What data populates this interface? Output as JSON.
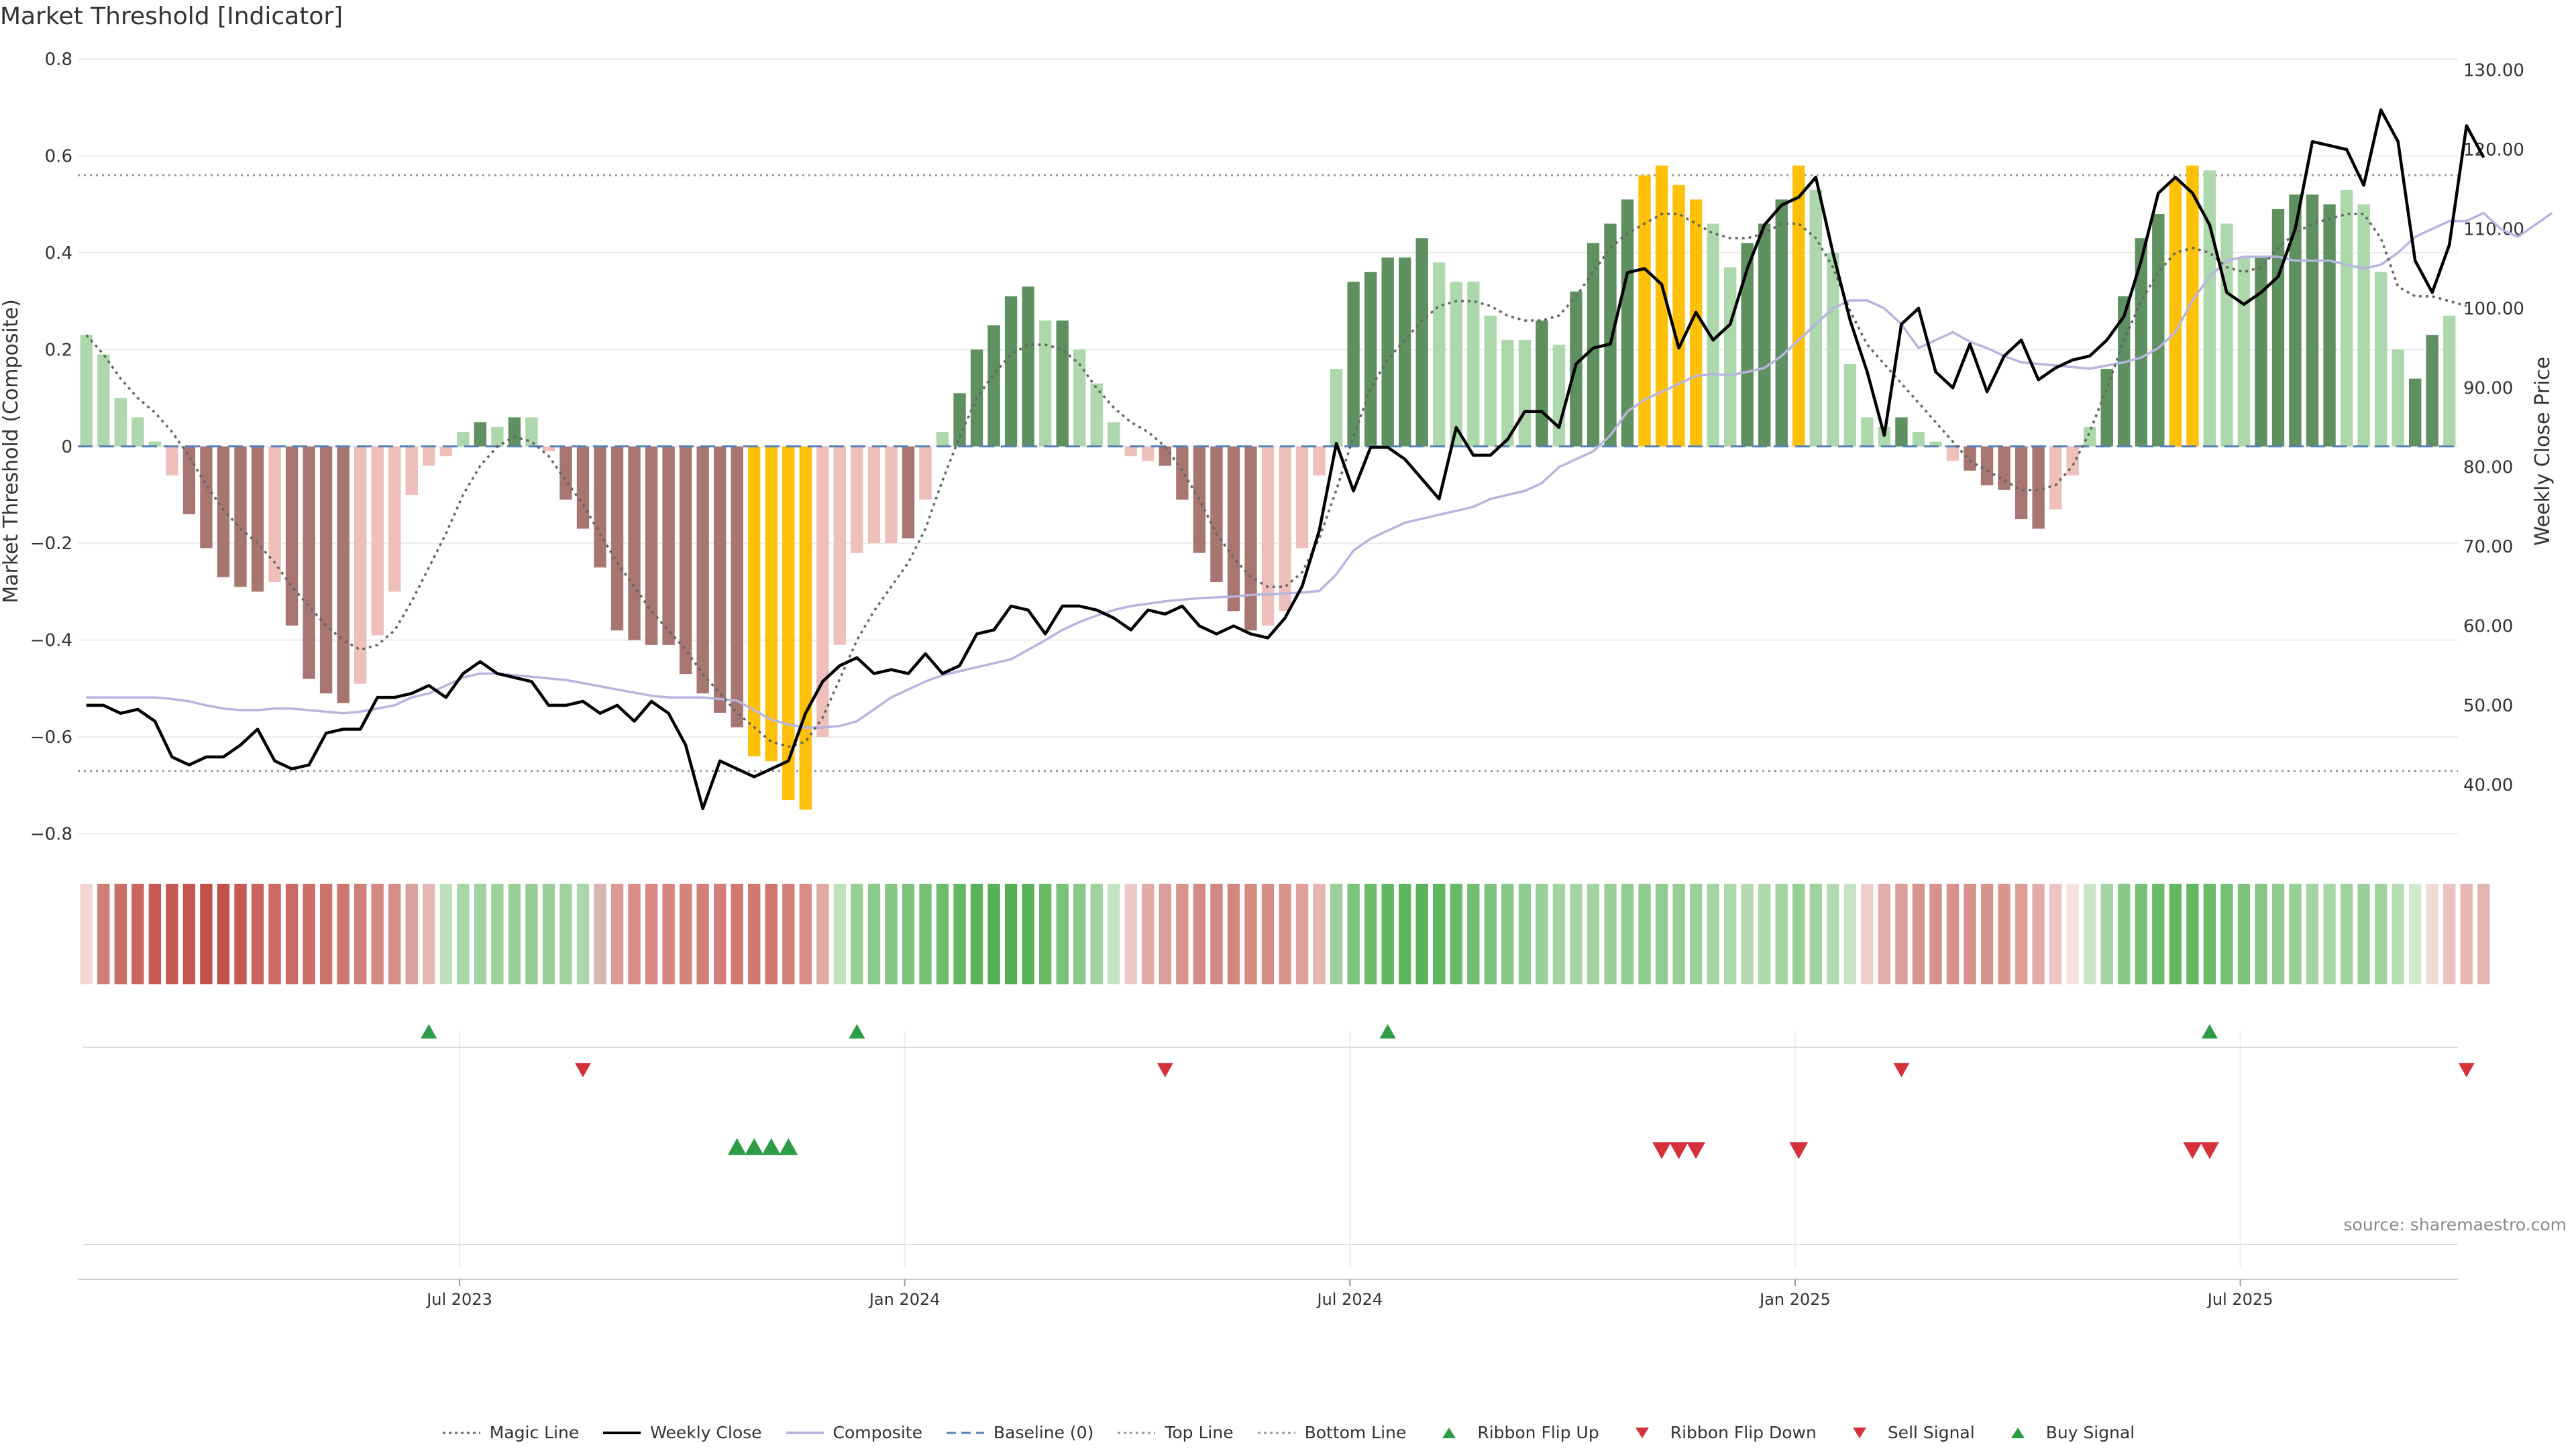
{
  "title": "Market Threshold [Indicator]",
  "source": "source: sharemaestro.com",
  "colors": {
    "up_strong": "#5e9060",
    "up_weak": "#acd8ac",
    "down_strong": "#a87672",
    "down_weak": "#eebfbb",
    "extreme": "#ffc107",
    "price": "#000000",
    "composite": "#b8b4e0",
    "magic": "#666666",
    "baseline": "#5580b8",
    "threshold": "#999999",
    "buy": "#2e9c46",
    "sell": "#d6303a"
  },
  "legend": [
    {
      "key": "magic",
      "label": "Magic Line",
      "style": "dotted"
    },
    {
      "key": "price",
      "label": "Weekly Close",
      "style": "solid"
    },
    {
      "key": "composite",
      "label": "Composite",
      "style": "solid"
    },
    {
      "key": "baseline",
      "label": "Baseline (0)",
      "style": "dashed"
    },
    {
      "key": "threshold",
      "label": "Top Line",
      "style": "dotted"
    },
    {
      "key": "threshold",
      "label": "Bottom Line",
      "style": "dotted"
    },
    {
      "key": "buy",
      "label": "Ribbon Flip Up",
      "style": "tri-up"
    },
    {
      "key": "sell",
      "label": "Ribbon Flip Down",
      "style": "tri-down"
    },
    {
      "key": "sell",
      "label": "Sell Signal",
      "style": "tri-down-big"
    },
    {
      "key": "buy",
      "label": "Buy Signal",
      "style": "tri-up-big"
    }
  ],
  "chart_data": {
    "type": "bar",
    "title": "Market Threshold [Indicator]",
    "ylabel": "Market Threshold (Composite)",
    "y2label": "Weekly Close Price",
    "ylim": [
      -0.82,
      0.8
    ],
    "y2lim": [
      32.6,
      131.4
    ],
    "yticks": [
      "0.8",
      "0.6",
      "0.4",
      "0.2",
      "0",
      "−0.2",
      "−0.4",
      "−0.6",
      "−0.8"
    ],
    "y2ticks": [
      "130.00",
      "120.00",
      "110.00",
      "100.00",
      "90.00",
      "80.00",
      "70.00",
      "60.00",
      "50.00",
      "40.00"
    ],
    "xticks": [
      {
        "label": "Jul 2023",
        "index": 21
      },
      {
        "label": "Jan 2024",
        "index": 47
      },
      {
        "label": "Jul 2024",
        "index": 73
      },
      {
        "label": "Jan 2025",
        "index": 99
      },
      {
        "label": "Jul 2025",
        "index": 125
      }
    ],
    "top_line": 0.56,
    "bottom_line": -0.67,
    "composite": [
      0.23,
      0.19,
      0.1,
      0.06,
      0.01,
      -0.06,
      -0.14,
      -0.21,
      -0.27,
      -0.29,
      -0.3,
      -0.28,
      -0.37,
      -0.48,
      -0.51,
      -0.53,
      -0.49,
      -0.39,
      -0.3,
      -0.1,
      -0.04,
      -0.02,
      0.03,
      0.05,
      0.04,
      0.06,
      0.06,
      -0.01,
      -0.11,
      -0.17,
      -0.25,
      -0.38,
      -0.4,
      -0.41,
      -0.41,
      -0.47,
      -0.51,
      -0.55,
      -0.58,
      -0.64,
      -0.65,
      -0.73,
      -0.75,
      -0.6,
      -0.41,
      -0.22,
      -0.2,
      -0.2,
      -0.19,
      -0.11,
      0.03,
      0.11,
      0.2,
      0.25,
      0.31,
      0.33,
      0.26,
      0.26,
      0.2,
      0.13,
      0.05,
      -0.02,
      -0.03,
      -0.04,
      -0.11,
      -0.22,
      -0.28,
      -0.34,
      -0.38,
      -0.37,
      -0.34,
      -0.21,
      -0.06,
      0.16,
      0.34,
      0.36,
      0.39,
      0.39,
      0.43,
      0.38,
      0.34,
      0.34,
      0.27,
      0.22,
      0.22,
      0.26,
      0.21,
      0.32,
      0.42,
      0.46,
      0.51,
      0.56,
      0.58,
      0.54,
      0.51,
      0.46,
      0.37,
      0.42,
      0.46,
      0.51,
      0.58,
      0.53,
      0.4,
      0.17,
      0.06,
      0.04,
      0.06,
      0.03,
      0.01,
      -0.03,
      -0.05,
      -0.08,
      -0.09,
      -0.15,
      -0.17,
      -0.13,
      -0.06,
      0.04,
      0.16,
      0.31,
      0.43,
      0.48,
      0.55,
      0.58,
      0.57,
      0.46,
      0.39,
      0.39,
      0.49,
      0.52,
      0.52,
      0.5,
      0.53,
      0.5,
      0.36,
      0.2,
      0.14,
      0.23,
      0.27
    ],
    "bar_class": [
      "uw",
      "uw",
      "uw",
      "uw",
      "uw",
      "dw",
      "ds",
      "ds",
      "ds",
      "ds",
      "ds",
      "dw",
      "ds",
      "ds",
      "ds",
      "ds",
      "dw",
      "dw",
      "dw",
      "dw",
      "dw",
      "dw",
      "uw",
      "us",
      "uw",
      "us",
      "uw",
      "dw",
      "ds",
      "ds",
      "ds",
      "ds",
      "ds",
      "ds",
      "ds",
      "ds",
      "ds",
      "ds",
      "ds",
      "ex",
      "ex",
      "ex",
      "ex",
      "dw",
      "dw",
      "dw",
      "dw",
      "dw",
      "ds",
      "dw",
      "uw",
      "us",
      "us",
      "us",
      "us",
      "us",
      "uw",
      "us",
      "uw",
      "uw",
      "uw",
      "dw",
      "dw",
      "ds",
      "ds",
      "ds",
      "ds",
      "ds",
      "ds",
      "dw",
      "dw",
      "dw",
      "dw",
      "uw",
      "us",
      "us",
      "us",
      "us",
      "us",
      "uw",
      "uw",
      "uw",
      "uw",
      "uw",
      "uw",
      "us",
      "uw",
      "us",
      "us",
      "us",
      "us",
      "ex",
      "ex",
      "ex",
      "ex",
      "uw",
      "uw",
      "us",
      "us",
      "us",
      "ex",
      "uw",
      "uw",
      "uw",
      "uw",
      "uw",
      "us",
      "uw",
      "uw",
      "dw",
      "ds",
      "ds",
      "ds",
      "ds",
      "ds",
      "dw",
      "dw",
      "uw",
      "us",
      "us",
      "us",
      "us",
      "ex",
      "ex",
      "uw",
      "uw",
      "uw",
      "us",
      "us",
      "us",
      "us",
      "us",
      "uw",
      "uw",
      "uw",
      "uw",
      "us",
      "us"
    ],
    "magic_line": [
      0.23,
      0.19,
      0.14,
      0.1,
      0.07,
      0.03,
      -0.02,
      -0.08,
      -0.13,
      -0.17,
      -0.2,
      -0.24,
      -0.29,
      -0.33,
      -0.37,
      -0.4,
      -0.42,
      -0.41,
      -0.38,
      -0.32,
      -0.25,
      -0.18,
      -0.1,
      -0.04,
      0.0,
      0.02,
      0.01,
      -0.02,
      -0.07,
      -0.12,
      -0.18,
      -0.24,
      -0.29,
      -0.34,
      -0.38,
      -0.42,
      -0.47,
      -0.51,
      -0.55,
      -0.58,
      -0.61,
      -0.62,
      -0.61,
      -0.56,
      -0.48,
      -0.4,
      -0.34,
      -0.29,
      -0.24,
      -0.17,
      -0.07,
      0.02,
      0.1,
      0.15,
      0.19,
      0.21,
      0.21,
      0.2,
      0.17,
      0.12,
      0.08,
      0.05,
      0.03,
      0.0,
      -0.05,
      -0.11,
      -0.18,
      -0.23,
      -0.27,
      -0.29,
      -0.29,
      -0.26,
      -0.19,
      -0.09,
      0.02,
      0.12,
      0.18,
      0.22,
      0.26,
      0.29,
      0.3,
      0.3,
      0.29,
      0.27,
      0.26,
      0.26,
      0.27,
      0.31,
      0.36,
      0.41,
      0.44,
      0.46,
      0.48,
      0.48,
      0.46,
      0.44,
      0.43,
      0.43,
      0.44,
      0.46,
      0.46,
      0.43,
      0.37,
      0.28,
      0.21,
      0.17,
      0.13,
      0.09,
      0.05,
      0.01,
      -0.03,
      -0.05,
      -0.07,
      -0.09,
      -0.09,
      -0.08,
      -0.04,
      0.03,
      0.12,
      0.22,
      0.3,
      0.36,
      0.4,
      0.41,
      0.4,
      0.37,
      0.36,
      0.37,
      0.41,
      0.44,
      0.46,
      0.47,
      0.48,
      0.48,
      0.43,
      0.33,
      0.31,
      0.31,
      0.3,
      0.29
    ],
    "price": [
      50,
      50,
      49,
      49.5,
      48,
      43.5,
      42.5,
      43.5,
      43.5,
      45,
      47,
      43,
      42,
      42.5,
      46.5,
      47,
      47,
      51,
      51,
      51.5,
      52.5,
      51,
      54,
      55.5,
      54,
      53.5,
      53,
      50,
      50,
      50.5,
      49,
      50,
      48,
      50.5,
      49,
      45,
      37,
      43,
      42,
      41,
      42,
      43,
      49,
      53,
      55,
      56,
      54,
      54.5,
      54,
      56.5,
      54,
      55,
      59,
      59.5,
      62.5,
      62,
      59,
      62.5,
      62.5,
      62,
      61,
      59.5,
      62,
      61.5,
      62.5,
      60,
      59,
      60,
      59,
      58.5,
      61,
      65,
      72,
      83,
      77,
      82.5,
      82.5,
      81,
      78.5,
      76,
      85,
      81.5,
      81.5,
      83.5,
      87,
      87,
      85,
      93,
      95,
      95.5,
      104.5,
      105,
      103,
      95,
      99.5,
      96,
      98,
      105,
      110.5,
      113,
      114,
      116.5,
      107,
      98.5,
      92,
      84,
      98,
      100,
      92,
      90,
      95.5,
      89.5,
      94,
      96,
      91,
      92.5,
      93.5,
      94,
      96,
      99,
      106,
      114.5,
      116.5,
      114.5,
      110.5,
      102,
      100.5,
      102,
      104,
      110,
      121,
      120.5,
      120,
      115.5,
      125,
      121,
      106,
      102,
      108,
      123,
      119
    ],
    "composite_line": [
      51,
      51,
      51,
      51,
      51,
      50.8,
      50.5,
      50,
      49.6,
      49.4,
      49.4,
      49.6,
      49.6,
      49.4,
      49.2,
      49,
      49.2,
      49.6,
      50,
      51,
      51.5,
      52.5,
      53.5,
      54,
      54,
      53.8,
      53.6,
      53.4,
      53.2,
      52.8,
      52.4,
      52,
      51.6,
      51.2,
      51,
      51,
      51,
      50.8,
      50.6,
      49.4,
      48.2,
      47.6,
      47.2,
      47.2,
      47.4,
      48,
      49.5,
      51,
      52,
      53,
      53.8,
      54.3,
      54.8,
      55.3,
      55.8,
      57,
      58.2,
      59.5,
      60.5,
      61.3,
      62,
      62.5,
      62.8,
      63.1,
      63.3,
      63.5,
      63.6,
      63.7,
      63.9,
      64,
      64.1,
      64.2,
      64.4,
      66.5,
      69.5,
      71,
      72,
      73,
      73.5,
      74,
      74.5,
      75,
      76,
      76.5,
      77,
      78,
      80,
      81,
      82,
      84,
      87,
      88.5,
      89.5,
      90.5,
      91.5,
      91.7,
      91.6,
      92,
      92.5,
      94,
      96,
      98,
      100,
      101,
      101,
      100,
      98,
      95,
      96,
      97,
      95.8,
      95,
      94,
      93.2,
      93,
      92.8,
      92.6,
      92.4,
      92.8,
      93.2,
      93.8,
      95,
      97,
      101,
      104,
      106,
      106.5,
      106.5,
      106.5,
      106,
      106,
      106,
      105.5,
      105,
      105.5,
      107,
      109,
      110,
      111,
      111,
      112,
      110,
      109,
      110.5,
      112
    ]
  },
  "signals": {
    "ribbon_flip_up": [
      20,
      45,
      76,
      124
    ],
    "ribbon_flip_down": [
      29,
      63,
      106,
      139
    ],
    "buy_signal": [
      38,
      39,
      40,
      41
    ],
    "sell_signal": [
      92,
      93,
      94,
      100,
      123,
      124
    ]
  },
  "ribbon_colors": [
    "#f2d6d4",
    "#cf7e78",
    "#cb6e67",
    "#c9665f",
    "#c65c55",
    "#c55a53",
    "#c5564f",
    "#c25048",
    "#c2524a",
    "#c55a53",
    "#c8645d",
    "#ca6a63",
    "#ca6b64",
    "#cb6e67",
    "#cd746d",
    "#ce7771",
    "#d07e78",
    "#d28781",
    "#d58f89",
    "#d9a19c",
    "#e3b8b4",
    "#bde0bc",
    "#a8d7a7",
    "#a1d3a0",
    "#9cd19b",
    "#99d098",
    "#94ce93",
    "#9ccf9b",
    "#a3d2a2",
    "#acd6ab",
    "#d9b5b2",
    "#dc9a95",
    "#d98e88",
    "#d78882",
    "#d6857f",
    "#d4837d",
    "#d37f79",
    "#d27d77",
    "#d17a74",
    "#d0786f",
    "#d0766f",
    "#d57f79",
    "#d98d87",
    "#e1a8a4",
    "#bfe2be",
    "#98cf97",
    "#8acb89",
    "#83c782",
    "#7ec47d",
    "#77c176",
    "#6cbd6b",
    "#62b861",
    "#5ab35a",
    "#56b156",
    "#53b053",
    "#59b459",
    "#67ba66",
    "#7ac279",
    "#89c888",
    "#a1d2a0",
    "#c4e3c3",
    "#eccac6",
    "#e3aba6",
    "#dc9c97",
    "#d8928c",
    "#d58c86",
    "#d38780",
    "#d3867f",
    "#d6897f",
    "#d78d87",
    "#da948e",
    "#de9e99",
    "#e5b4b0",
    "#9ccf9b",
    "#7cc37b",
    "#6abc69",
    "#62b861",
    "#5db55c",
    "#5ab35a",
    "#5db55c",
    "#66ba65",
    "#71be70",
    "#7cc37b",
    "#86c885",
    "#8fcb8e",
    "#98cf97",
    "#a1d3a0",
    "#a6d5a5",
    "#a3d3a2",
    "#9ad09a",
    "#92cd91",
    "#8ecb8d",
    "#90cc8f",
    "#96ce95",
    "#9cd19b",
    "#a4d4a3",
    "#aed8ad",
    "#b4dab3",
    "#aed8ad",
    "#a3d3a2",
    "#97cf96",
    "#a1d3a0",
    "#b2d9b1",
    "#c6e3c5",
    "#efcfcc",
    "#e3aeaa",
    "#dc9e99",
    "#d9958f",
    "#d8918b",
    "#d7908a",
    "#d8918b",
    "#d8938d",
    "#d9958f",
    "#dc9d98",
    "#e2ada9",
    "#ecc6c3",
    "#f6e2e0",
    "#c9e6c8",
    "#a3d3a2",
    "#88c987",
    "#76c175",
    "#6abc69",
    "#63b862",
    "#63b862",
    "#6abc69",
    "#74c073",
    "#7ec47d",
    "#86c785",
    "#8fcb8e",
    "#99d098",
    "#a4d4a3",
    "#a8d6a7",
    "#a1d3a0",
    "#9ad09a",
    "#a1d3a0",
    "#b5dcb4",
    "#d0ead0",
    "#f0dad8",
    "#eac2bf",
    "#e6b8b4",
    "#e3b5b1"
  ]
}
